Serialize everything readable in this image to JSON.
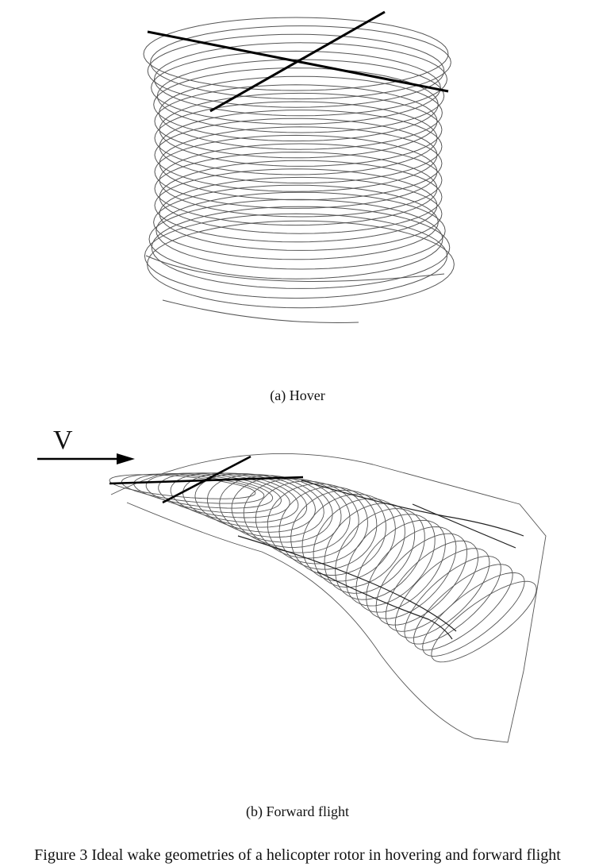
{
  "figure": {
    "title": "Figure 3 Ideal wake geometries of a helicopter rotor in hovering and forward flight",
    "panels": [
      {
        "caption": "(a)  Hover"
      },
      {
        "caption": "(b)  Forward flight",
        "velocity_label": "V"
      }
    ]
  }
}
